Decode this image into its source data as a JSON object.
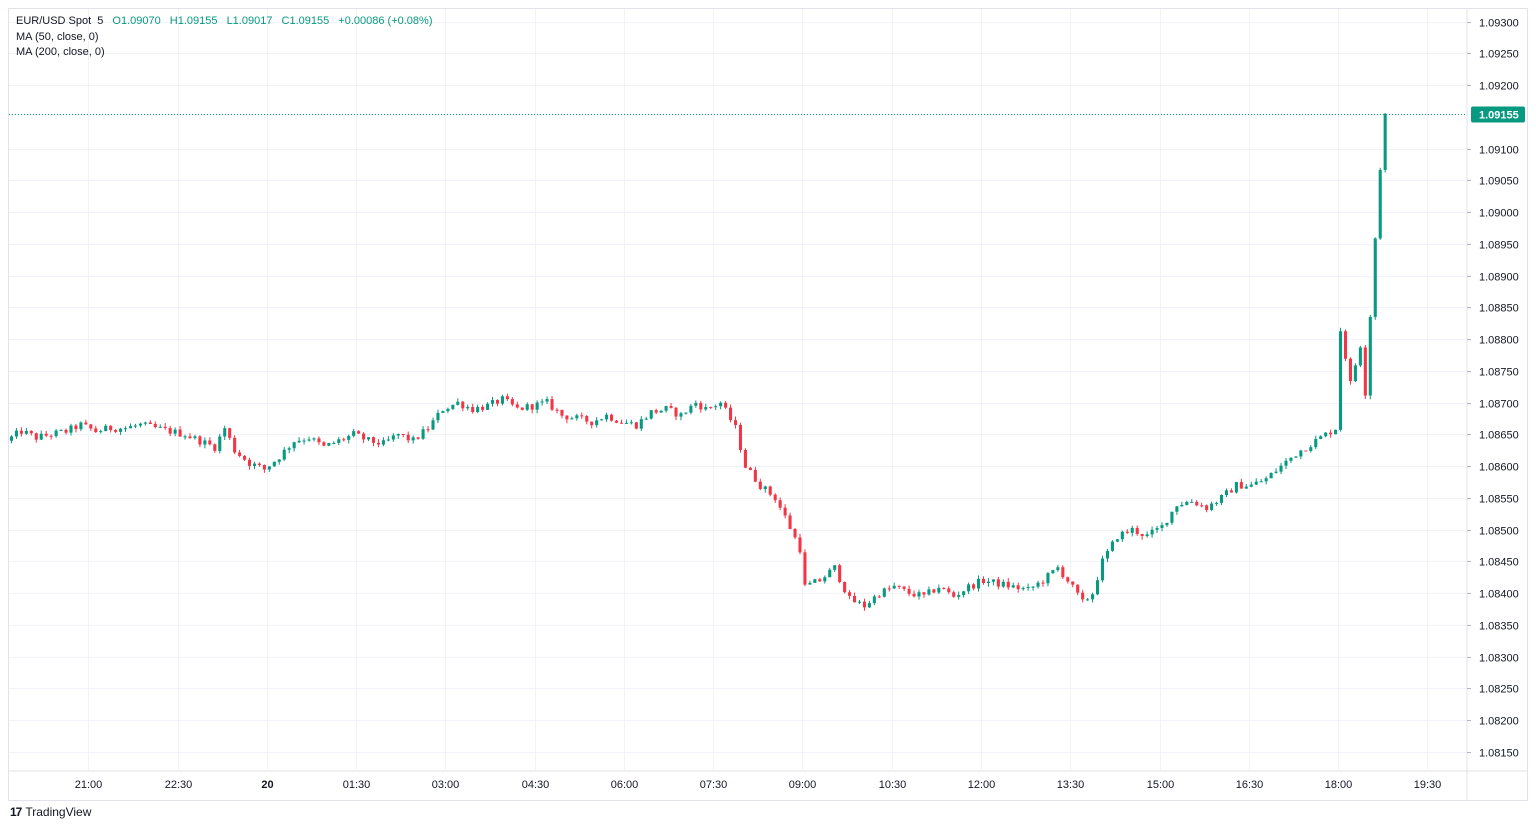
{
  "legend": {
    "symbol": "EUR/USD Spot",
    "interval": "5",
    "open": "O1.09070",
    "high": "H1.09155",
    "low": "L1.09017",
    "close": "C1.09155",
    "change": "+0.00086 (+0.08%)",
    "ma1": "MA (50, close, 0)",
    "ma2": "MA (200, close, 0)"
  },
  "brand": {
    "name": "TradingView",
    "logo_text": "17"
  },
  "colors": {
    "up": "#089981",
    "down": "#f23645",
    "grid": "#f0f3fa",
    "axis_border": "#e0e3eb"
  },
  "chart_data": {
    "type": "candlestick",
    "symbol": "EUR/USD Spot",
    "interval_minutes": 5,
    "ylim": [
      1.0812,
      1.0932
    ],
    "y_ticks": [
      "1.09300",
      "1.09250",
      "1.09200",
      "1.09100",
      "1.09050",
      "1.09000",
      "1.08950",
      "1.08900",
      "1.08850",
      "1.08800",
      "1.08750",
      "1.08700",
      "1.08650",
      "1.08600",
      "1.08550",
      "1.08500",
      "1.08450",
      "1.08400",
      "1.08350",
      "1.08300",
      "1.08250",
      "1.08200",
      "1.08150"
    ],
    "x_ticks": [
      "21:00",
      "22:30",
      "20",
      "01:30",
      "03:00",
      "04:30",
      "06:00",
      "07:30",
      "09:00",
      "10:30",
      "12:00",
      "13:30",
      "15:00",
      "16:30",
      "18:00",
      "19:30"
    ],
    "x_tick_minutes": [
      1260,
      1350,
      1440,
      1530,
      1620,
      1710,
      1800,
      1890,
      1980,
      2070,
      2160,
      2250,
      2340,
      2430,
      2520,
      2610
    ],
    "x_range_minutes": [
      1180,
      2650
    ],
    "last_price": "1.09155",
    "last_price_value": 1.09155,
    "grid": true,
    "path": [
      [
        1180,
        1.0864
      ],
      [
        1195,
        1.08655
      ],
      [
        1210,
        1.08645
      ],
      [
        1225,
        1.0865
      ],
      [
        1240,
        1.08655
      ],
      [
        1255,
        1.08665
      ],
      [
        1270,
        1.08655
      ],
      [
        1285,
        1.0866
      ],
      [
        1300,
        1.0866
      ],
      [
        1315,
        1.08665
      ],
      [
        1330,
        1.0866
      ],
      [
        1345,
        1.08655
      ],
      [
        1360,
        1.0865
      ],
      [
        1375,
        1.0864
      ],
      [
        1390,
        1.0863
      ],
      [
        1400,
        1.0866
      ],
      [
        1410,
        1.08625
      ],
      [
        1425,
        1.08605
      ],
      [
        1440,
        1.08595
      ],
      [
        1455,
        1.08615
      ],
      [
        1470,
        1.0864
      ],
      [
        1485,
        1.08645
      ],
      [
        1500,
        1.0863
      ],
      [
        1515,
        1.0864
      ],
      [
        1530,
        1.0865
      ],
      [
        1545,
        1.0864
      ],
      [
        1560,
        1.08635
      ],
      [
        1575,
        1.0865
      ],
      [
        1590,
        1.0864
      ],
      [
        1605,
        1.0866
      ],
      [
        1620,
        1.0869
      ],
      [
        1635,
        1.087
      ],
      [
        1650,
        1.0869
      ],
      [
        1665,
        1.08695
      ],
      [
        1680,
        1.08705
      ],
      [
        1695,
        1.0869
      ],
      [
        1710,
        1.08695
      ],
      [
        1725,
        1.087
      ],
      [
        1740,
        1.0868
      ],
      [
        1755,
        1.08675
      ],
      [
        1770,
        1.0867
      ],
      [
        1785,
        1.0868
      ],
      [
        1800,
        1.0867
      ],
      [
        1815,
        1.08665
      ],
      [
        1830,
        1.08685
      ],
      [
        1845,
        1.0869
      ],
      [
        1860,
        1.0868
      ],
      [
        1875,
        1.087
      ],
      [
        1885,
        1.0869
      ],
      [
        1900,
        1.087
      ],
      [
        1915,
        1.0866
      ],
      [
        1925,
        1.086
      ],
      [
        1940,
        1.0857
      ],
      [
        1955,
        1.0855
      ],
      [
        1965,
        1.0852
      ],
      [
        1980,
        1.0847
      ],
      [
        1985,
        1.0841
      ],
      [
        2000,
        1.0842
      ],
      [
        2015,
        1.0844
      ],
      [
        2030,
        1.0839
      ],
      [
        2045,
        1.0838
      ],
      [
        2060,
        1.084
      ],
      [
        2075,
        1.0841
      ],
      [
        2090,
        1.084
      ],
      [
        2105,
        1.08395
      ],
      [
        2120,
        1.0841
      ],
      [
        2135,
        1.08395
      ],
      [
        2150,
        1.0841
      ],
      [
        2165,
        1.0842
      ],
      [
        2180,
        1.08415
      ],
      [
        2195,
        1.0841
      ],
      [
        2210,
        1.08405
      ],
      [
        2225,
        1.0842
      ],
      [
        2240,
        1.0844
      ],
      [
        2250,
        1.0842
      ],
      [
        2265,
        1.08385
      ],
      [
        2275,
        1.084
      ],
      [
        2285,
        1.0845
      ],
      [
        2300,
        1.0849
      ],
      [
        2315,
        1.085
      ],
      [
        2330,
        1.0849
      ],
      [
        2345,
        1.08505
      ],
      [
        2360,
        1.0854
      ],
      [
        2375,
        1.08545
      ],
      [
        2390,
        1.08535
      ],
      [
        2405,
        1.0855
      ],
      [
        2420,
        1.0857
      ],
      [
        2435,
        1.0857
      ],
      [
        2450,
        1.0858
      ],
      [
        2465,
        1.086
      ],
      [
        2480,
        1.0862
      ],
      [
        2495,
        1.08635
      ],
      [
        2510,
        1.0865
      ],
      [
        2520,
        1.0866
      ],
      [
        2522,
        1.0884
      ],
      [
        2528,
        1.0879
      ],
      [
        2535,
        1.0873
      ],
      [
        2540,
        1.0876
      ],
      [
        2548,
        1.0881
      ],
      [
        2551,
        1.0867
      ],
      [
        2556,
        1.0888
      ],
      [
        2560,
        1.0896
      ],
      [
        2565,
        1.0907
      ],
      [
        2568,
        1.09155
      ]
    ]
  }
}
